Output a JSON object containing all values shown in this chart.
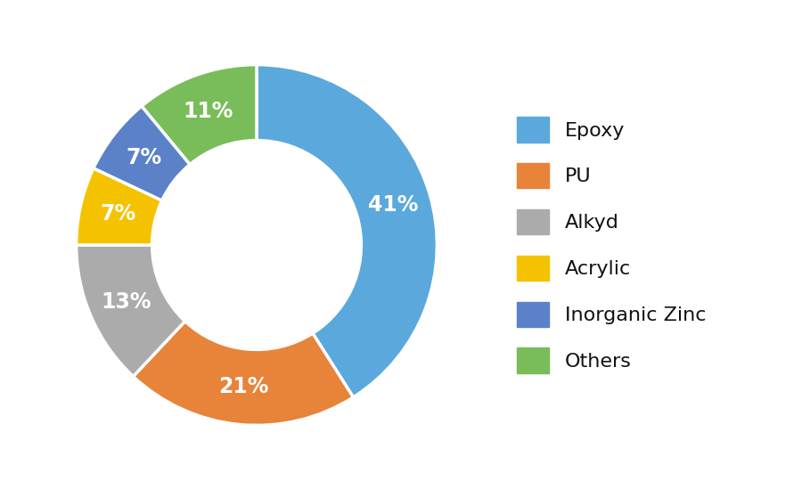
{
  "labels": [
    "Epoxy",
    "PU",
    "Alkyd",
    "Acrylic",
    "Inorganic Zinc",
    "Others"
  ],
  "values": [
    41,
    21,
    13,
    7,
    7,
    11
  ],
  "colors": [
    "#5BA8DC",
    "#E8833A",
    "#ABABAB",
    "#F5C200",
    "#5B82C8",
    "#79BD5A"
  ],
  "pct_labels": [
    "41%",
    "21%",
    "13%",
    "7%",
    "7%",
    "11%"
  ],
  "donut_width": 0.42,
  "background_color": "#ffffff",
  "text_color": "#ffffff",
  "label_fontsize": 17,
  "legend_fontsize": 16,
  "fig_width": 9.0,
  "fig_height": 5.5
}
